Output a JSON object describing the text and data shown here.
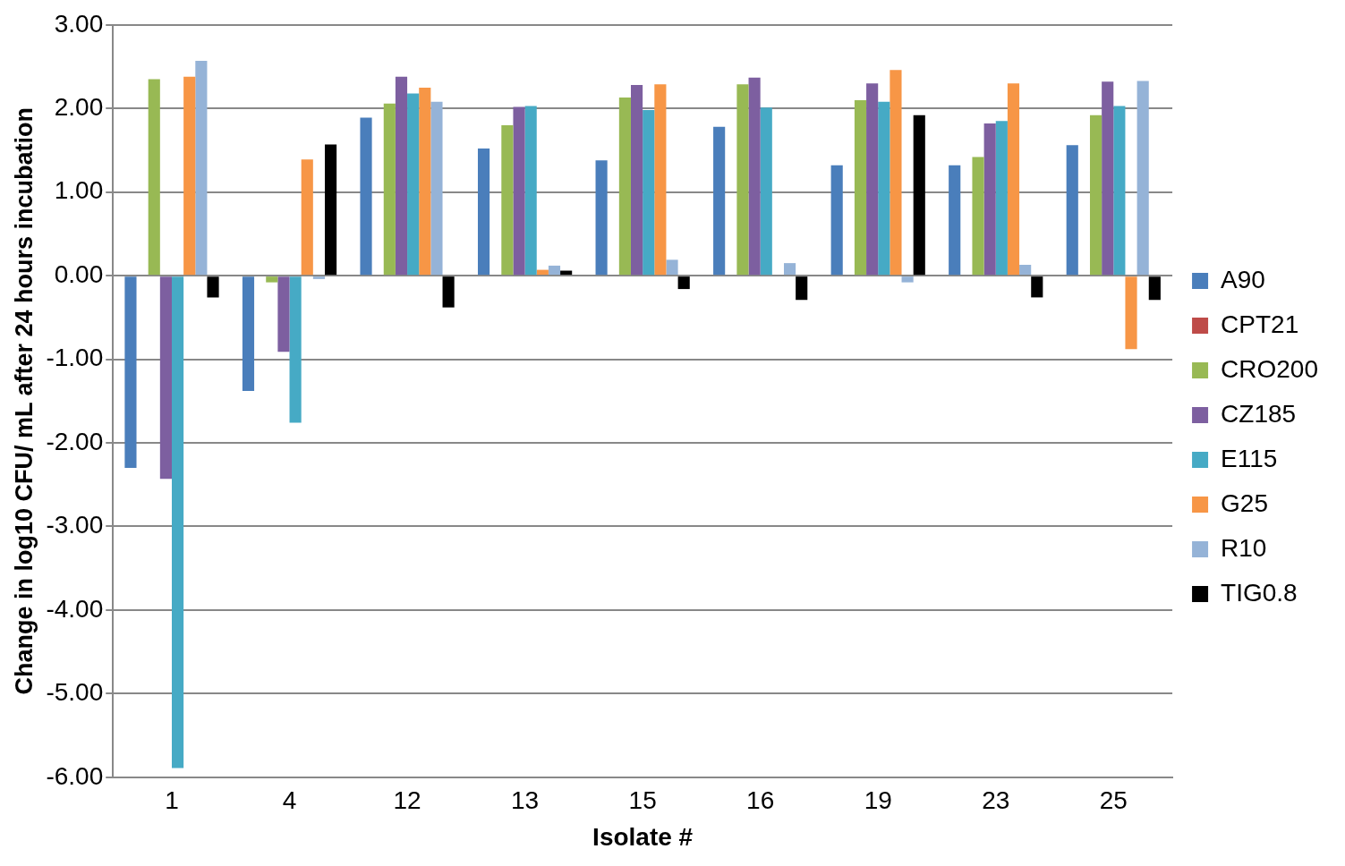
{
  "chart_data": {
    "type": "bar",
    "xlabel": "Isolate #",
    "ylabel": "Change in log10 CFU/ mL after 24 hours incubation",
    "categories": [
      "1",
      "4",
      "12",
      "13",
      "15",
      "16",
      "19",
      "23",
      "25"
    ],
    "series": [
      {
        "name": "A90",
        "color": "#4a7ebb",
        "values": [
          -2.3,
          -1.38,
          1.89,
          1.52,
          1.38,
          1.78,
          1.32,
          1.32,
          1.56
        ]
      },
      {
        "name": "CPT21",
        "color": "#be4b48",
        "values": [
          0,
          0,
          0,
          0,
          0,
          0,
          0,
          0,
          0
        ]
      },
      {
        "name": "CRO200",
        "color": "#98b954",
        "values": [
          2.35,
          -0.08,
          2.06,
          1.8,
          2.13,
          2.29,
          2.1,
          1.42,
          1.92
        ]
      },
      {
        "name": "CZ185",
        "color": "#7d5fa0",
        "values": [
          -2.43,
          -0.91,
          2.38,
          2.02,
          2.28,
          2.37,
          2.3,
          1.82,
          2.32
        ]
      },
      {
        "name": "E115",
        "color": "#46aac5",
        "values": [
          -5.89,
          -1.76,
          2.18,
          2.03,
          1.98,
          2.01,
          2.08,
          1.85,
          2.03
        ]
      },
      {
        "name": "G25",
        "color": "#f79646",
        "values": [
          2.38,
          1.39,
          2.25,
          0.07,
          2.29,
          0,
          2.46,
          2.3,
          -0.88
        ]
      },
      {
        "name": "R10",
        "color": "#95b3d7",
        "values": [
          2.57,
          -0.04,
          2.08,
          0.12,
          0.19,
          0.15,
          -0.08,
          0.13,
          2.33
        ]
      },
      {
        "name": "TIG0.8",
        "color": "#000000",
        "values": [
          -0.26,
          1.57,
          -0.38,
          0.06,
          -0.16,
          -0.29,
          1.92,
          -0.26,
          -0.29
        ]
      }
    ],
    "ylim": [
      -6,
      3
    ],
    "yticks": [
      {
        "value": -6,
        "label": "-6.00"
      },
      {
        "value": -5,
        "label": "-5.00"
      },
      {
        "value": -4,
        "label": "-4.00"
      },
      {
        "value": -3,
        "label": "-3.00"
      },
      {
        "value": -2,
        "label": "-2.00"
      },
      {
        "value": -1,
        "label": "-1.00"
      },
      {
        "value": 0,
        "label": "0.00"
      },
      {
        "value": 1,
        "label": "1.00"
      },
      {
        "value": 2,
        "label": "2.00"
      },
      {
        "value": 3,
        "label": "3.00"
      }
    ],
    "grid": "y",
    "legend": "right"
  }
}
